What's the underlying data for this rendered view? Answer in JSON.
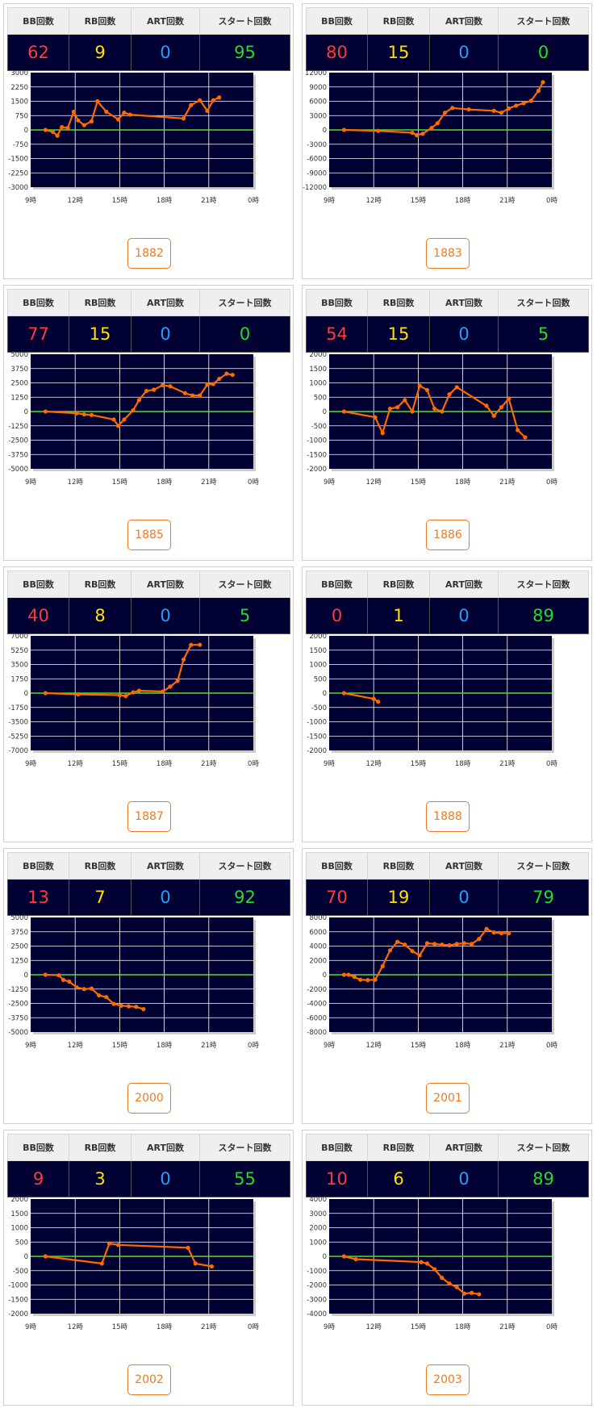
{
  "headers": {
    "bb": "BB回数",
    "rb": "RB回数",
    "art": "ART回数",
    "start": "スタート回数"
  },
  "x_ticks": [
    "9時",
    "12時",
    "15時",
    "18時",
    "21時",
    "0時"
  ],
  "colors": {
    "plot_bg": "#000033",
    "line": "#ff6a00",
    "zero_line": "#55dd33",
    "grid": "#ffffff",
    "bb": "#ff3b3b",
    "rb": "#ffe000",
    "art": "#1ea0ff",
    "start": "#22dd22",
    "button": "#f07a20"
  },
  "machines": [
    {
      "id": "1882",
      "bb": "62",
      "rb": "9",
      "art": "0",
      "start": "95"
    },
    {
      "id": "1883",
      "bb": "80",
      "rb": "15",
      "art": "0",
      "start": "0"
    },
    {
      "id": "1885",
      "bb": "77",
      "rb": "15",
      "art": "0",
      "start": "0"
    },
    {
      "id": "1886",
      "bb": "54",
      "rb": "15",
      "art": "0",
      "start": "5"
    },
    {
      "id": "1887",
      "bb": "40",
      "rb": "8",
      "art": "0",
      "start": "5"
    },
    {
      "id": "1888",
      "bb": "0",
      "rb": "1",
      "art": "0",
      "start": "89"
    },
    {
      "id": "2000",
      "bb": "13",
      "rb": "7",
      "art": "0",
      "start": "92"
    },
    {
      "id": "2001",
      "bb": "70",
      "rb": "19",
      "art": "0",
      "start": "79"
    },
    {
      "id": "2002",
      "bb": "9",
      "rb": "3",
      "art": "0",
      "start": "55"
    },
    {
      "id": "2003",
      "bb": "10",
      "rb": "6",
      "art": "0",
      "start": "89"
    }
  ],
  "chart_data": [
    {
      "type": "line",
      "machine": "1882",
      "x_unit": "hour",
      "xlim": [
        9,
        24
      ],
      "ylim": [
        -3000,
        3000
      ],
      "yticks": [
        "3000",
        "2250",
        "1500",
        "750",
        "0",
        "-750",
        "-1500",
        "-2250",
        "-3000"
      ],
      "x": [
        10,
        10.5,
        10.8,
        11.1,
        11.5,
        11.9,
        12.2,
        12.6,
        13.1,
        13.5,
        14.1,
        14.9,
        15.3,
        15.7,
        19.3,
        19.8,
        20.4,
        20.9,
        21.3,
        21.7
      ],
      "y": [
        0,
        -100,
        -300,
        150,
        100,
        950,
        500,
        250,
        450,
        1500,
        950,
        550,
        900,
        800,
        600,
        1300,
        1550,
        1000,
        1550,
        1700
      ]
    },
    {
      "type": "line",
      "machine": "1883",
      "x_unit": "hour",
      "xlim": [
        9,
        24
      ],
      "ylim": [
        -12000,
        12000
      ],
      "yticks": [
        "12000",
        "9000",
        "6000",
        "3000",
        "0",
        "-3000",
        "-6000",
        "-9000",
        "-12000"
      ],
      "x": [
        10,
        12.3,
        14.6,
        14.9,
        15.3,
        15.9,
        16.3,
        16.8,
        17.3,
        18.4,
        20.1,
        20.6,
        21.1,
        21.6,
        22.1,
        22.6,
        23.1,
        23.4
      ],
      "y": [
        0,
        -200,
        -600,
        -1100,
        -800,
        400,
        1400,
        3600,
        4600,
        4300,
        4000,
        3600,
        4500,
        5100,
        5600,
        6100,
        8200,
        10000
      ]
    },
    {
      "type": "line",
      "machine": "1885",
      "x_unit": "hour",
      "xlim": [
        9,
        24
      ],
      "ylim": [
        -5000,
        5000
      ],
      "yticks": [
        "5000",
        "3750",
        "2500",
        "1250",
        "0",
        "-1250",
        "-2500",
        "-3750",
        "-5000"
      ],
      "x": [
        10,
        12.1,
        12.6,
        13.1,
        14.6,
        14.9,
        15.3,
        15.9,
        16.3,
        16.8,
        17.3,
        17.9,
        18.4,
        19.4,
        19.9,
        20.4,
        20.9,
        21.3,
        21.7,
        22.2,
        22.6
      ],
      "y": [
        0,
        -150,
        -250,
        -300,
        -700,
        -1250,
        -700,
        100,
        1000,
        1800,
        1900,
        2300,
        2200,
        1600,
        1400,
        1400,
        2350,
        2400,
        2850,
        3300,
        3200
      ]
    },
    {
      "type": "line",
      "machine": "1886",
      "x_unit": "hour",
      "xlim": [
        9,
        24
      ],
      "ylim": [
        -2000,
        2000
      ],
      "yticks": [
        "2000",
        "1500",
        "1000",
        "500",
        "0",
        "-500",
        "-1000",
        "-1500",
        "-2000"
      ],
      "x": [
        10,
        12.1,
        12.6,
        13.1,
        13.6,
        14.1,
        14.6,
        15.1,
        15.6,
        16.1,
        16.6,
        17.1,
        17.6,
        19.6,
        20.1,
        20.6,
        21.1,
        21.7,
        22.2
      ],
      "y": [
        0,
        -200,
        -750,
        100,
        150,
        400,
        0,
        900,
        750,
        100,
        0,
        600,
        850,
        200,
        -150,
        150,
        450,
        -650,
        -900
      ]
    },
    {
      "type": "line",
      "machine": "1887",
      "x_unit": "hour",
      "xlim": [
        9,
        24
      ],
      "ylim": [
        -7000,
        7000
      ],
      "yticks": [
        "7000",
        "5250",
        "3500",
        "1750",
        "0",
        "-1750",
        "-3500",
        "-5250",
        "-7000"
      ],
      "x": [
        10,
        12.2,
        15,
        15.4,
        15.9,
        16.3,
        17.9,
        18.4,
        18.9,
        19.3,
        19.8,
        20.4
      ],
      "y": [
        0,
        -150,
        -250,
        -350,
        100,
        300,
        200,
        800,
        1500,
        4100,
        5900,
        5900
      ]
    },
    {
      "type": "line",
      "machine": "1888",
      "x_unit": "hour",
      "xlim": [
        9,
        24
      ],
      "ylim": [
        -2000,
        2000
      ],
      "yticks": [
        "2000",
        "1500",
        "1000",
        "500",
        "0",
        "-500",
        "-1000",
        "-1500",
        "-2000"
      ],
      "x": [
        10,
        12,
        12.3
      ],
      "y": [
        0,
        -200,
        -300
      ]
    },
    {
      "type": "line",
      "machine": "2000",
      "x_unit": "hour",
      "xlim": [
        9,
        24
      ],
      "ylim": [
        -5000,
        5000
      ],
      "yticks": [
        "5000",
        "3750",
        "2500",
        "1250",
        "0",
        "-1250",
        "-2500",
        "-3750",
        "-5000"
      ],
      "x": [
        10,
        10.9,
        11.2,
        11.6,
        12.1,
        12.6,
        13.1,
        13.6,
        14.1,
        14.6,
        15.1,
        15.6,
        16.1,
        16.6
      ],
      "y": [
        0,
        -50,
        -450,
        -600,
        -1100,
        -1250,
        -1200,
        -1800,
        -1950,
        -2550,
        -2700,
        -2750,
        -2800,
        -3000
      ]
    },
    {
      "type": "line",
      "machine": "2001",
      "x_unit": "hour",
      "xlim": [
        9,
        24
      ],
      "ylim": [
        -8000,
        8000
      ],
      "yticks": [
        "8000",
        "6000",
        "4000",
        "2000",
        "0",
        "-2000",
        "-4000",
        "-6000",
        "-8000"
      ],
      "x": [
        10,
        10.3,
        10.7,
        11.1,
        11.6,
        12.1,
        12.6,
        13.1,
        13.6,
        14.1,
        14.6,
        15.1,
        15.6,
        16.1,
        16.6,
        17.1,
        17.6,
        18.1,
        18.6,
        19.1,
        19.6,
        20.1,
        20.6,
        21.1
      ],
      "y": [
        0,
        0,
        -300,
        -700,
        -750,
        -700,
        1200,
        3400,
        4600,
        4200,
        3300,
        2700,
        4400,
        4300,
        4200,
        4100,
        4300,
        4400,
        4300,
        5000,
        6400,
        5900,
        5800,
        5800
      ]
    },
    {
      "type": "line",
      "machine": "2002",
      "x_unit": "hour",
      "xlim": [
        9,
        24
      ],
      "ylim": [
        -2000,
        2000
      ],
      "yticks": [
        "2000",
        "1500",
        "1000",
        "500",
        "0",
        "-500",
        "-1000",
        "-1500",
        "-2000"
      ],
      "x": [
        10,
        13.8,
        14.3,
        14.9,
        19.6,
        20.1,
        21.2
      ],
      "y": [
        0,
        -250,
        450,
        400,
        300,
        -250,
        -350
      ]
    },
    {
      "type": "line",
      "machine": "2003",
      "x_unit": "hour",
      "xlim": [
        9,
        24
      ],
      "ylim": [
        -4000,
        4000
      ],
      "yticks": [
        "4000",
        "3000",
        "2000",
        "1000",
        "0",
        "-1000",
        "-2000",
        "-3000",
        "-4000"
      ],
      "x": [
        10,
        10.8,
        15.2,
        15.6,
        16.1,
        16.6,
        17.1,
        17.6,
        18.1,
        18.6,
        19.1
      ],
      "y": [
        0,
        -200,
        -400,
        -500,
        -900,
        -1500,
        -1900,
        -2150,
        -2600,
        -2550,
        -2650
      ]
    }
  ]
}
